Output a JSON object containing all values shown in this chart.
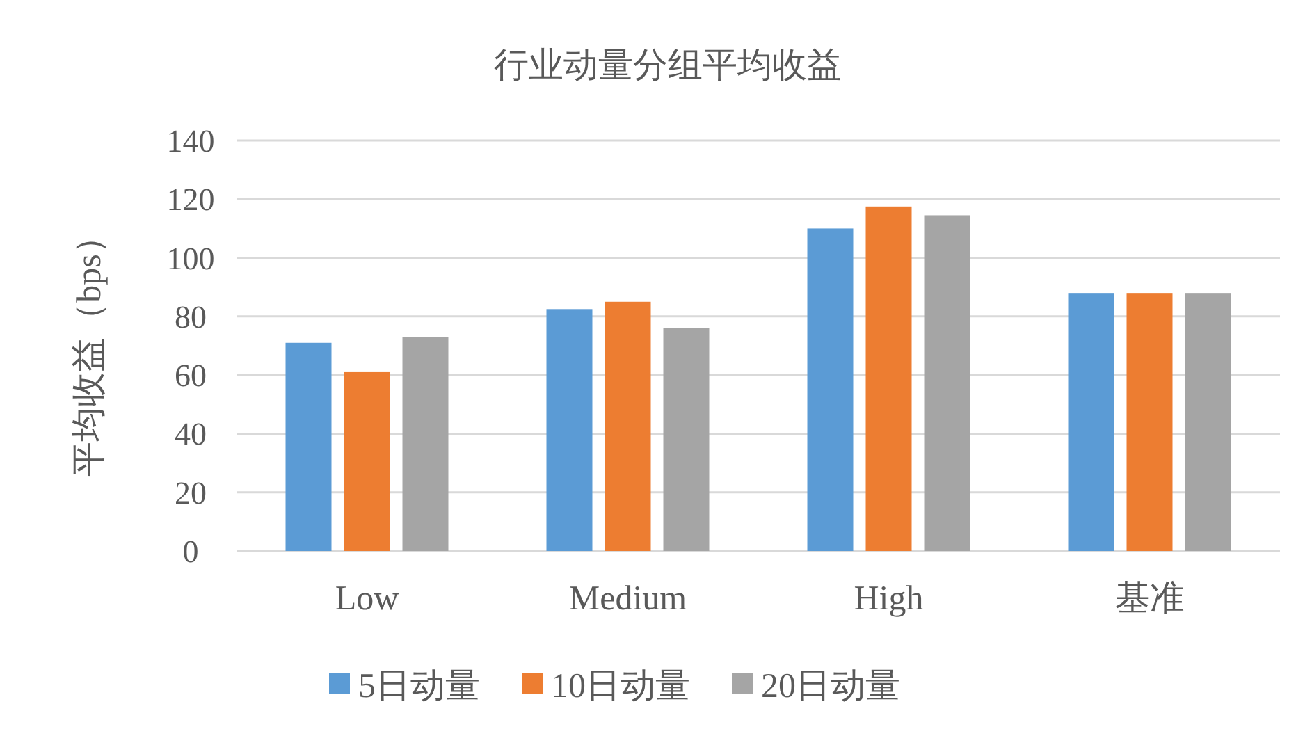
{
  "chart_data": {
    "type": "bar",
    "title": "行业动量分组平均收益",
    "ylabel": "平均收益（bps）",
    "categories": [
      "Low",
      "Medium",
      "High",
      "基准"
    ],
    "series": [
      {
        "name": "5日动量",
        "color": "#5b9bd5",
        "values": [
          71,
          82.5,
          110,
          88
        ]
      },
      {
        "name": "10日动量",
        "color": "#ed7d31",
        "values": [
          61,
          85,
          117.5,
          88
        ]
      },
      {
        "name": "20日动量",
        "color": "#a5a5a5",
        "values": [
          73,
          76,
          114.5,
          88
        ]
      }
    ],
    "ylim": [
      0,
      140
    ],
    "yticks": [
      0,
      20,
      40,
      60,
      80,
      100,
      120,
      140
    ],
    "grid": "y",
    "legend": "bottom"
  }
}
